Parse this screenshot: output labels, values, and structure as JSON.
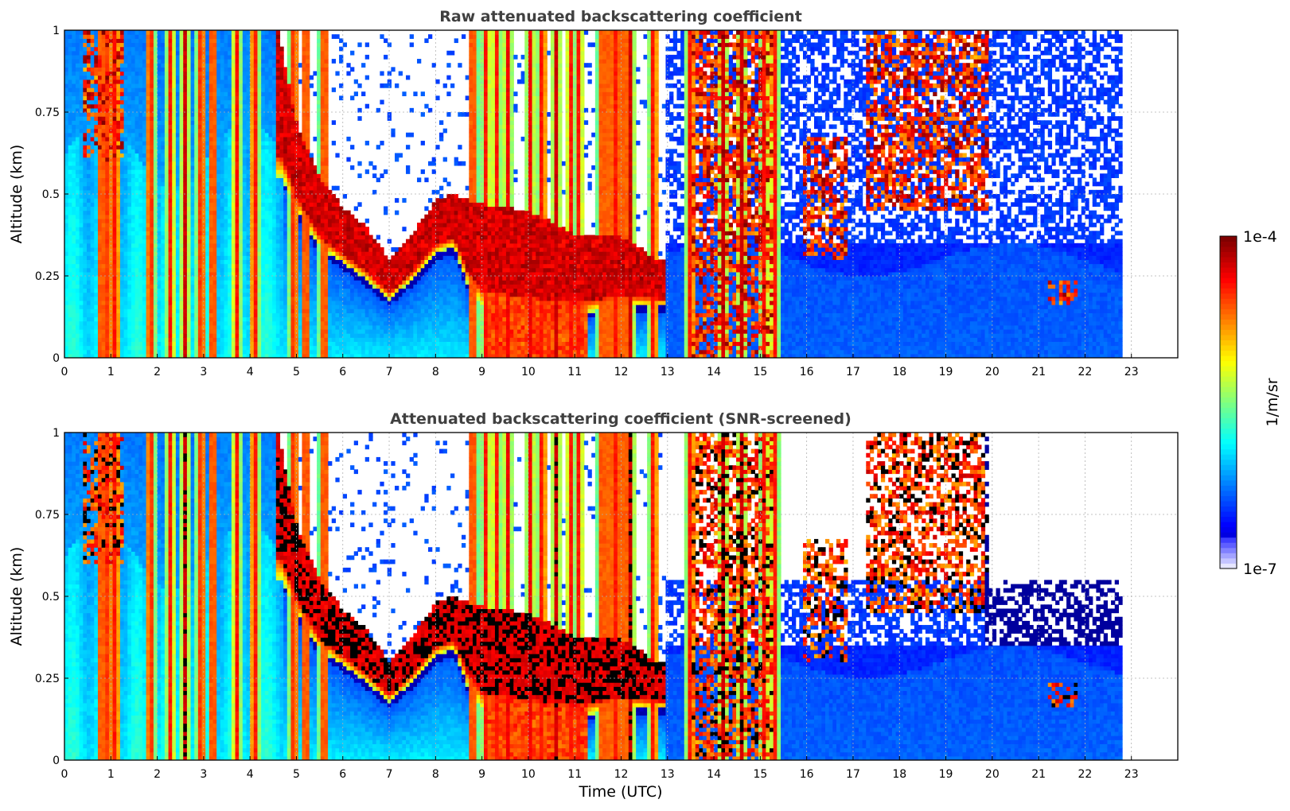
{
  "chart_data": [
    {
      "type": "heatmap",
      "title": "Raw attenuated backscattering coefficient",
      "xlabel": "",
      "ylabel": "Altitude (km)",
      "xlim": [
        0,
        24
      ],
      "ylim": [
        0,
        1
      ],
      "x_ticks": [
        "0",
        "1",
        "2",
        "3",
        "4",
        "5",
        "6",
        "7",
        "8",
        "9",
        "10",
        "11",
        "12",
        "13",
        "14",
        "15",
        "16",
        "17",
        "18",
        "19",
        "20",
        "21",
        "22",
        "23"
      ],
      "y_ticks": [
        "0",
        "0.25",
        "0.5",
        "0.75",
        "1"
      ],
      "grid": true,
      "data_end_time": 22.8,
      "layer_top_km": [
        [
          0.0,
          0.62
        ],
        [
          1.0,
          0.6
        ],
        [
          2.0,
          0.6
        ],
        [
          3.0,
          0.6
        ],
        [
          4.0,
          0.65
        ],
        [
          4.6,
          1.0
        ],
        [
          4.8,
          0.72
        ],
        [
          5.0,
          0.55
        ],
        [
          5.5,
          0.46
        ],
        [
          6.0,
          0.4
        ],
        [
          6.5,
          0.34
        ],
        [
          7.0,
          0.3
        ],
        [
          7.5,
          0.34
        ],
        [
          8.0,
          0.42
        ],
        [
          8.3,
          0.44
        ],
        [
          8.7,
          0.38
        ],
        [
          9.0,
          0.4
        ],
        [
          10.0,
          0.38
        ],
        [
          11.0,
          0.32
        ],
        [
          12.0,
          0.34
        ],
        [
          12.5,
          0.3
        ],
        [
          13.0,
          0.3
        ]
      ],
      "cloud_base_km": [
        [
          4.7,
          0.55
        ],
        [
          5.0,
          0.45
        ],
        [
          5.5,
          0.34
        ],
        [
          6.0,
          0.29
        ],
        [
          6.5,
          0.24
        ],
        [
          7.0,
          0.18
        ],
        [
          7.5,
          0.24
        ],
        [
          8.0,
          0.32
        ],
        [
          8.4,
          0.34
        ],
        [
          8.7,
          0.22
        ],
        [
          9.0,
          0.16
        ],
        [
          10.0,
          0.14
        ],
        [
          11.0,
          0.13
        ],
        [
          12.0,
          0.16
        ],
        [
          12.8,
          0.16
        ]
      ],
      "cloud_top_km": [
        [
          4.6,
          1.0
        ],
        [
          5.0,
          0.72
        ],
        [
          5.5,
          0.55
        ],
        [
          6.0,
          0.46
        ],
        [
          6.5,
          0.4
        ],
        [
          7.0,
          0.3
        ],
        [
          7.5,
          0.38
        ],
        [
          8.0,
          0.48
        ],
        [
          8.3,
          0.5
        ],
        [
          9.0,
          0.47
        ],
        [
          10.0,
          0.45
        ],
        [
          11.0,
          0.38
        ],
        [
          12.0,
          0.37
        ],
        [
          12.8,
          0.3
        ]
      ],
      "boundary_layer_top_km": 0.3,
      "upper_clouds": [
        {
          "t_start": 0.4,
          "t_end": 1.3,
          "base_km": 0.6,
          "top_km": 1.0
        },
        {
          "t_start": 13.5,
          "t_end": 15.3,
          "base_km": 0.0,
          "top_km": 1.0
        },
        {
          "t_start": 15.9,
          "t_end": 16.9,
          "base_km": 0.3,
          "top_km": 0.68
        },
        {
          "t_start": 17.3,
          "t_end": 19.9,
          "base_km": 0.45,
          "top_km": 1.0
        },
        {
          "t_start": 21.2,
          "t_end": 21.8,
          "base_km": 0.16,
          "top_km": 0.24
        }
      ],
      "precipitation_streaks_hours": [
        0.8,
        0.95,
        1.1,
        1.85,
        2.3,
        2.6,
        2.95,
        3.2,
        3.7,
        4.1,
        4.95,
        5.2,
        5.6,
        8.8,
        9.1,
        9.3,
        9.55,
        10.05,
        10.3,
        10.6,
        10.9,
        11.1,
        11.6,
        11.9,
        12.2,
        12.7,
        13.5,
        14.2,
        14.6,
        15.1,
        15.3
      ]
    },
    {
      "type": "heatmap",
      "title": "Attenuated backscattering coefficient (SNR-screened)",
      "xlabel": "Time (UTC)",
      "ylabel": "Altitude (km)",
      "xlim": [
        0,
        24
      ],
      "ylim": [
        0,
        1
      ],
      "x_ticks": [
        "0",
        "1",
        "2",
        "3",
        "4",
        "5",
        "6",
        "7",
        "8",
        "9",
        "10",
        "11",
        "12",
        "13",
        "14",
        "15",
        "16",
        "17",
        "18",
        "19",
        "20",
        "21",
        "22",
        "23"
      ],
      "y_ticks": [
        "0",
        "0.25",
        "0.5",
        "0.75",
        "1"
      ],
      "grid": true,
      "data_end_time": 22.8,
      "screened": true
    }
  ],
  "colorbar": {
    "label": "1/m/sr",
    "max_label": "1e-4",
    "min_label": "1e-7",
    "scale": "log",
    "range": [
      1e-07,
      0.0001
    ],
    "colormap": "jet"
  },
  "colors": {
    "background_clear": "#ffffff",
    "saturated_screened": "#000000",
    "axis": "#000000",
    "grid": "#b0b0b0"
  }
}
